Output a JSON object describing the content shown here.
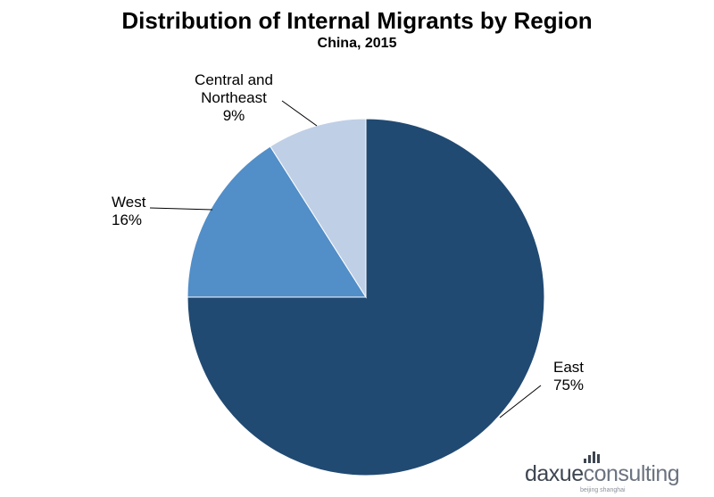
{
  "chart_data": {
    "type": "pie",
    "title": "Distribution of Internal Migrants by Region",
    "subtitle": "China, 2015",
    "start_angle_deg": 0,
    "direction": "clockwise",
    "slices": [
      {
        "label": "East",
        "value": 75,
        "display": "75%",
        "color": "#214a72"
      },
      {
        "label": "West",
        "value": 16,
        "display": "16%",
        "color": "#528ec8"
      },
      {
        "label": "Central and Northeast",
        "label_lines": [
          "Central and",
          "Northeast"
        ],
        "value": 9,
        "display": "9%",
        "color": "#bfcfe6"
      }
    ]
  },
  "watermark": {
    "brand_dark": "daxue",
    "brand_light": "consulting",
    "tagline": "beijing shanghai"
  }
}
